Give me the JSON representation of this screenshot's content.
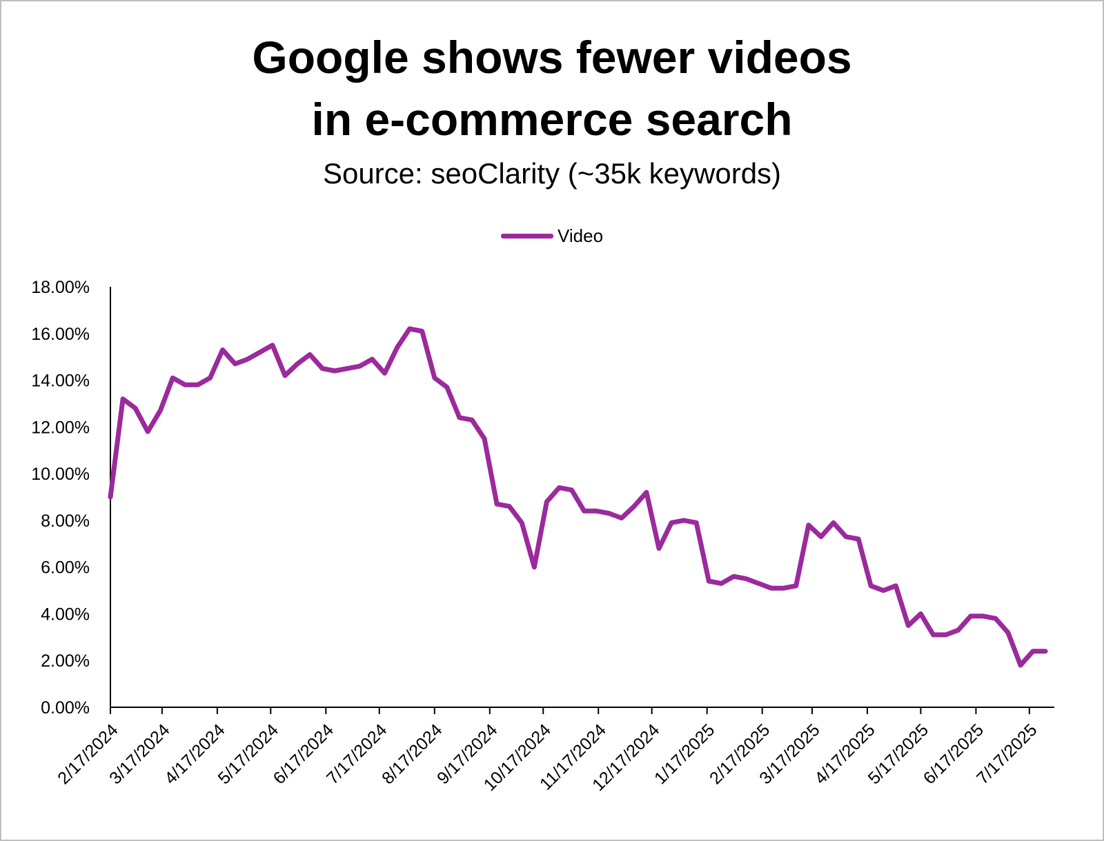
{
  "chart_data": {
    "type": "line",
    "title_lines": [
      "Google shows fewer videos",
      "in e-commerce search"
    ],
    "subtitle": "Source: seoClarity (~35k keywords)",
    "xlabel": "",
    "ylabel": "",
    "ylim": [
      0,
      18
    ],
    "y_ticks": [
      "0.00%",
      "2.00%",
      "4.00%",
      "6.00%",
      "8.00%",
      "10.00%",
      "12.00%",
      "14.00%",
      "16.00%",
      "18.00%"
    ],
    "x_ticks": [
      "2/17/2024",
      "3/17/2024",
      "4/17/2024",
      "5/17/2024",
      "6/17/2024",
      "7/17/2024",
      "8/17/2024",
      "9/17/2024",
      "10/17/2024",
      "11/17/2024",
      "12/17/2024",
      "1/17/2025",
      "2/17/2025",
      "3/17/2025",
      "4/17/2025",
      "5/17/2025",
      "6/17/2025",
      "7/17/2025"
    ],
    "x_range": [
      "2/17/2024",
      "7/31/2025"
    ],
    "legend_position": "top-center",
    "grid": false,
    "series": [
      {
        "name": "Video",
        "color": "#9B2A9C",
        "points": [
          [
            "2/17/2024",
            9.0
          ],
          [
            "2/24/2024",
            13.2
          ],
          [
            "3/2/2024",
            12.8
          ],
          [
            "3/9/2024",
            11.8
          ],
          [
            "3/16/2024",
            12.7
          ],
          [
            "3/23/2024",
            14.1
          ],
          [
            "3/30/2024",
            13.8
          ],
          [
            "4/6/2024",
            13.8
          ],
          [
            "4/13/2024",
            14.1
          ],
          [
            "4/20/2024",
            15.3
          ],
          [
            "4/27/2024",
            14.7
          ],
          [
            "5/4/2024",
            14.9
          ],
          [
            "5/11/2024",
            15.2
          ],
          [
            "5/18/2024",
            15.5
          ],
          [
            "5/25/2024",
            14.2
          ],
          [
            "6/1/2024",
            14.7
          ],
          [
            "6/8/2024",
            15.1
          ],
          [
            "6/15/2024",
            14.5
          ],
          [
            "6/22/2024",
            14.4
          ],
          [
            "6/29/2024",
            14.5
          ],
          [
            "7/6/2024",
            14.6
          ],
          [
            "7/13/2024",
            14.9
          ],
          [
            "7/20/2024",
            14.3
          ],
          [
            "7/27/2024",
            15.4
          ],
          [
            "8/3/2024",
            16.2
          ],
          [
            "8/10/2024",
            16.1
          ],
          [
            "8/17/2024",
            14.1
          ],
          [
            "8/24/2024",
            13.7
          ],
          [
            "8/31/2024",
            12.4
          ],
          [
            "9/7/2024",
            12.3
          ],
          [
            "9/14/2024",
            11.5
          ],
          [
            "9/21/2024",
            8.7
          ],
          [
            "9/28/2024",
            8.6
          ],
          [
            "10/5/2024",
            7.9
          ],
          [
            "10/12/2024",
            6.0
          ],
          [
            "10/19/2024",
            8.8
          ],
          [
            "10/26/2024",
            9.4
          ],
          [
            "11/2/2024",
            9.3
          ],
          [
            "11/9/2024",
            8.4
          ],
          [
            "11/16/2024",
            8.4
          ],
          [
            "11/23/2024",
            8.3
          ],
          [
            "11/30/2024",
            8.1
          ],
          [
            "12/7/2024",
            8.6
          ],
          [
            "12/14/2024",
            9.2
          ],
          [
            "12/21/2024",
            6.8
          ],
          [
            "12/28/2024",
            7.9
          ],
          [
            "1/4/2025",
            8.0
          ],
          [
            "1/11/2025",
            7.9
          ],
          [
            "1/18/2025",
            5.4
          ],
          [
            "1/25/2025",
            5.3
          ],
          [
            "2/1/2025",
            5.6
          ],
          [
            "2/8/2025",
            5.5
          ],
          [
            "2/15/2025",
            5.3
          ],
          [
            "2/22/2025",
            5.1
          ],
          [
            "3/1/2025",
            5.1
          ],
          [
            "3/8/2025",
            5.2
          ],
          [
            "3/15/2025",
            7.8
          ],
          [
            "3/22/2025",
            7.3
          ],
          [
            "3/29/2025",
            7.9
          ],
          [
            "4/5/2025",
            7.3
          ],
          [
            "4/12/2025",
            7.2
          ],
          [
            "4/19/2025",
            5.2
          ],
          [
            "4/26/2025",
            5.0
          ],
          [
            "5/3/2025",
            5.2
          ],
          [
            "5/10/2025",
            3.5
          ],
          [
            "5/17/2025",
            4.0
          ],
          [
            "5/24/2025",
            3.1
          ],
          [
            "5/31/2025",
            3.1
          ],
          [
            "6/7/2025",
            3.3
          ],
          [
            "6/14/2025",
            3.9
          ],
          [
            "6/21/2025",
            3.9
          ],
          [
            "6/28/2025",
            3.8
          ],
          [
            "7/5/2025",
            3.2
          ],
          [
            "7/12/2025",
            1.8
          ],
          [
            "7/19/2025",
            2.4
          ],
          [
            "7/26/2025",
            2.4
          ]
        ]
      }
    ]
  }
}
